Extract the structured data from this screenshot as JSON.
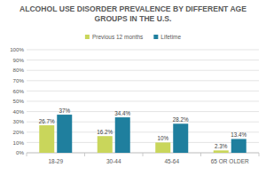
{
  "chart_data": {
    "type": "bar",
    "title": "ALCOHOL USE DISORDER PREVALENCE BY DIFFERENT AGE GROUPS IN THE U.S.",
    "categories": [
      "18-29",
      "30-44",
      "45-64",
      "65 OR OLDER"
    ],
    "series": [
      {
        "name": "Previous 12 months",
        "color": "#c9d65b",
        "values": [
          26.7,
          16.2,
          10,
          2.3
        ],
        "value_labels": [
          "26.7%",
          "16.2%",
          "10%",
          "2.3%"
        ]
      },
      {
        "name": "Lifetime",
        "color": "#1f7f9e",
        "values": [
          37,
          34.4,
          28.2,
          13.4
        ],
        "value_labels": [
          "37%",
          "34.4%",
          "28.2%",
          "13.4%"
        ]
      }
    ],
    "ylim": [
      0,
      100
    ],
    "yticks": [
      {
        "value": 0,
        "label": "0%"
      },
      {
        "value": 10,
        "label": "10%"
      },
      {
        "value": 20,
        "label": "20%"
      },
      {
        "value": 30,
        "label": "30%"
      },
      {
        "value": 40,
        "label": "40%"
      },
      {
        "value": 50,
        "label": "50%"
      },
      {
        "value": 60,
        "label": "60%"
      },
      {
        "value": 70,
        "label": "70%"
      },
      {
        "value": 80,
        "label": "80%"
      },
      {
        "value": 90,
        "label": "90%"
      },
      {
        "value": 100,
        "label": "100%"
      }
    ],
    "grid": true,
    "legend": "top",
    "data_labels": true
  }
}
